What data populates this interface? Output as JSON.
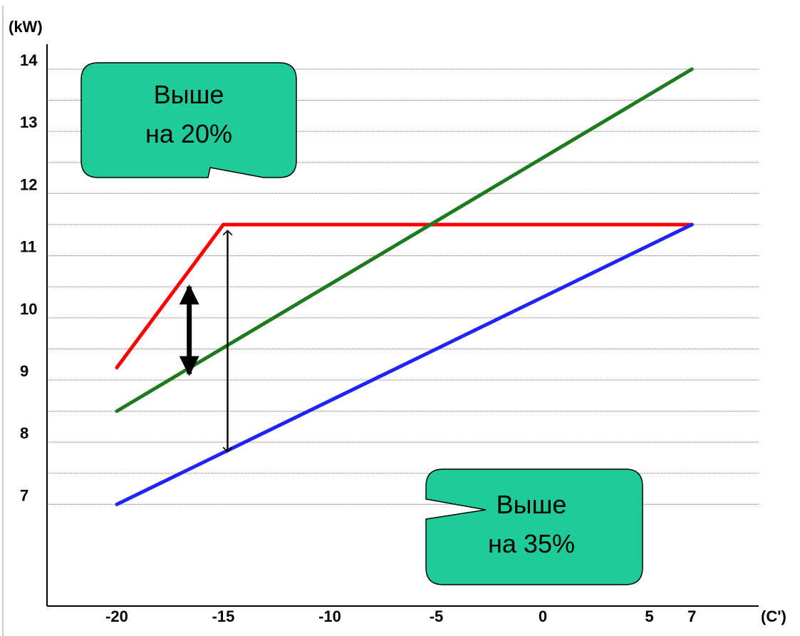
{
  "chart_data": {
    "type": "line",
    "ylabel": "(kW)",
    "xlabel": "(C')",
    "x_ticks": [
      "-20",
      "-15",
      "-10",
      "-5",
      "0",
      "5",
      "7"
    ],
    "y_ticks": [
      "14",
      "13",
      "12",
      "11",
      "10",
      "9",
      "8",
      "7"
    ],
    "xlim": [
      -22.5,
      7.5
    ],
    "ylim": [
      6.5,
      14.8
    ],
    "grid": true,
    "grid_step": 0.5,
    "series": [
      {
        "color": "#ff0000",
        "x": [
          -20,
          -15,
          7
        ],
        "y": [
          9.2,
          11.5,
          11.5
        ]
      },
      {
        "color": "#1e7a1e",
        "x": [
          -20,
          7
        ],
        "y": [
          8.5,
          14.0
        ]
      },
      {
        "color": "#1f24ff",
        "x": [
          -20,
          7
        ],
        "y": [
          7.0,
          11.5
        ]
      }
    ],
    "arrows": [
      {
        "x": -16.6,
        "y_from": 10.55,
        "y_to": 9.05,
        "style": "thick"
      },
      {
        "x": -14.8,
        "y_from": 11.45,
        "y_to": 7.8,
        "style": "thin"
      }
    ],
    "annotations": [
      {
        "lines": [
          "Выше",
          "на 20%"
        ],
        "fill": "#1fcc99"
      },
      {
        "lines": [
          "Выше",
          "на 35%"
        ],
        "fill": "#1fcc99"
      }
    ]
  }
}
